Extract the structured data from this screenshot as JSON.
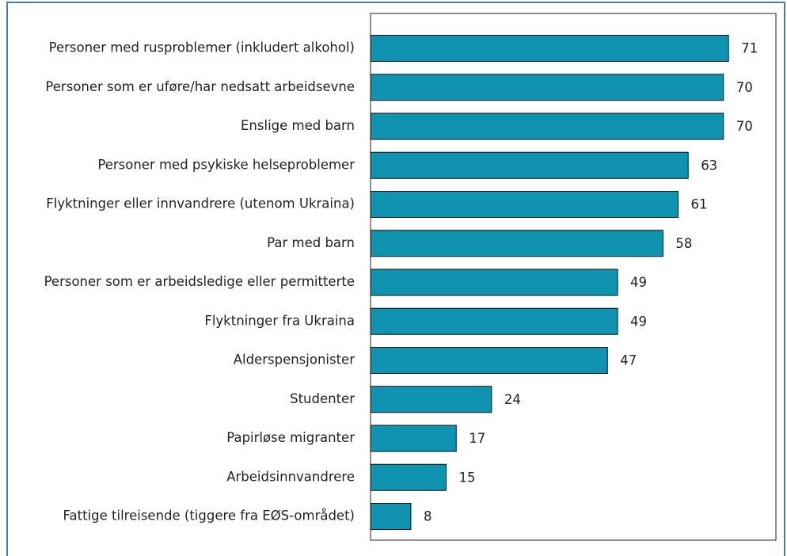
{
  "chart_data": {
    "type": "barh",
    "categories": [
      "Personer med rusproblemer (inkludert alkohol)",
      "Personer som er uføre/har nedsatt arbeidsevne",
      "Enslige med barn",
      "Personer med psykiske helseproblemer",
      "Flyktninger eller innvandrere (utenom Ukraina)",
      "Par med barn",
      "Personer som er arbeidsledige eller permitterte",
      "Flyktninger fra Ukraina",
      "Alderspensjonister",
      "Studenter",
      "Papirløse migranter",
      "Arbeidsinnvandrere",
      "Fattige tilreisende (tiggere fra EØS-området)"
    ],
    "values": [
      71,
      70,
      70,
      63,
      61,
      58,
      49,
      49,
      47,
      24,
      17,
      15,
      8
    ],
    "color": "#0f93b0",
    "xlim": [
      0,
      80.4
    ]
  }
}
